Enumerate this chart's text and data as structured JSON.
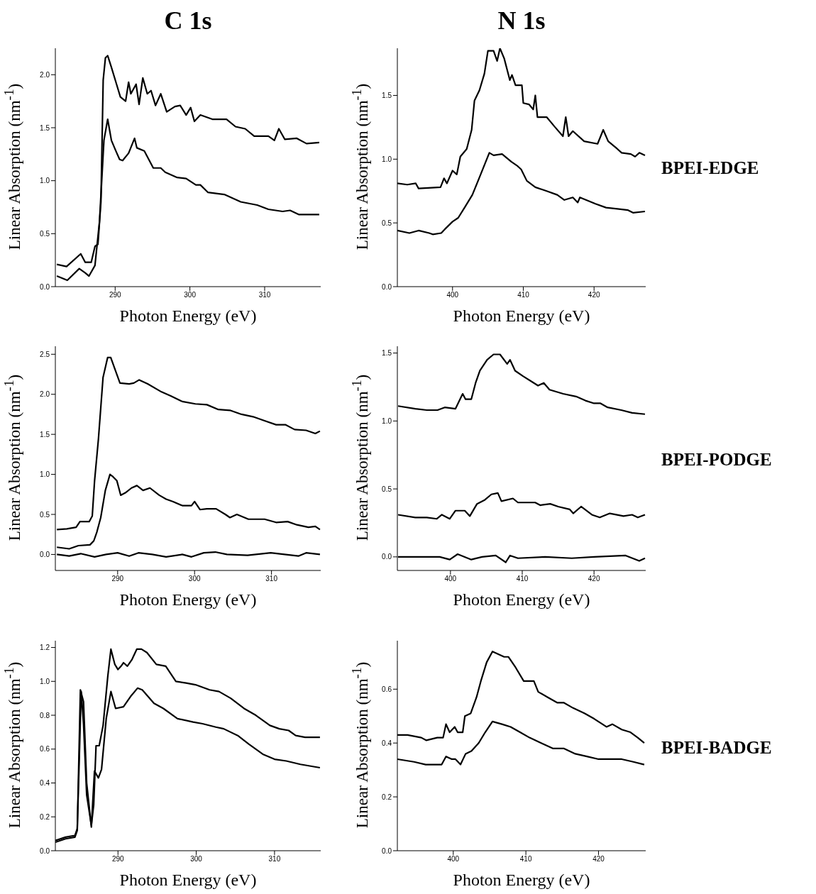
{
  "chart_data": [
    {
      "type": "line",
      "title": "C 1s",
      "xlabel": "Photon Energy (eV)",
      "ylabel": "Linear Absorption (nm$^{-1}$)",
      "xlim": [
        282,
        317.5
      ],
      "xticks": [
        290,
        300,
        310
      ],
      "ylim": [
        0,
        2.25
      ],
      "yticks": [
        {
          "value": 0,
          "label": "0.0"
        },
        {
          "value": 0.5,
          "label": "0.5"
        },
        {
          "value": 1,
          "label": "1.0"
        },
        {
          "value": 1.5,
          "label": "1.5"
        },
        {
          "value": 2,
          "label": "2.0"
        }
      ],
      "series": [
        {
          "color": "#000000",
          "x": [
            282.2,
            283.5,
            285.4,
            286.0,
            286.8,
            287.3,
            287.7,
            288.1,
            288.4,
            288.7,
            289.0,
            289.5,
            290.1,
            290.7,
            291.4,
            291.8,
            292.1,
            292.8,
            293.2,
            293.7,
            294.3,
            294.8,
            295.4,
            296.1,
            296.9,
            298.0,
            298.7,
            299.5,
            300.1,
            300.6,
            301.4,
            303.0,
            304.9,
            306.1,
            307.4,
            308.6,
            310.5,
            311.3,
            311.9,
            312.7,
            314.3,
            315.6,
            317.3
          ],
          "values": [
            0.21,
            0.19,
            0.31,
            0.23,
            0.23,
            0.38,
            0.4,
            0.8,
            1.95,
            2.16,
            2.18,
            2.07,
            1.93,
            1.79,
            1.75,
            1.93,
            1.82,
            1.91,
            1.72,
            1.97,
            1.82,
            1.85,
            1.71,
            1.82,
            1.65,
            1.7,
            1.71,
            1.62,
            1.69,
            1.56,
            1.62,
            1.58,
            1.58,
            1.51,
            1.49,
            1.42,
            1.42,
            1.38,
            1.49,
            1.39,
            1.4,
            1.35,
            1.36
          ]
        },
        {
          "color": "#000000",
          "x": [
            282.2,
            283.6,
            285.2,
            286.0,
            286.5,
            287.3,
            287.9,
            288.5,
            289.0,
            289.5,
            290.1,
            290.6,
            291.0,
            291.8,
            292.6,
            292.9,
            293.9,
            295.1,
            296.1,
            296.7,
            298.3,
            299.5,
            300.8,
            301.4,
            302.4,
            304.6,
            306.8,
            309.0,
            310.5,
            312.4,
            313.4,
            314.6,
            317.3
          ],
          "values": [
            0.1,
            0.06,
            0.17,
            0.13,
            0.1,
            0.2,
            0.61,
            1.38,
            1.58,
            1.38,
            1.28,
            1.2,
            1.19,
            1.26,
            1.4,
            1.31,
            1.28,
            1.12,
            1.12,
            1.08,
            1.03,
            1.02,
            0.96,
            0.96,
            0.89,
            0.87,
            0.8,
            0.77,
            0.73,
            0.71,
            0.72,
            0.68,
            0.68
          ]
        }
      ]
    },
    {
      "type": "line",
      "title": "N 1s",
      "xlabel": "Photon Energy (eV)",
      "ylabel": "Linear Absorption (nm$^{-1}$)",
      "annotations": [
        "BPEI-EDGE"
      ],
      "xlim": [
        392.2,
        427.3
      ],
      "xticks": [
        400,
        410,
        420
      ],
      "ylim": [
        0,
        1.87
      ],
      "yticks": [
        {
          "value": 0,
          "label": "0.0"
        },
        {
          "value": 0.5,
          "label": "0.5"
        },
        {
          "value": 1,
          "label": "1.0"
        },
        {
          "value": 1.5,
          "label": "1.5"
        }
      ],
      "series": [
        {
          "color": "#000000",
          "x": [
            392.2,
            393.6,
            394.8,
            395.2,
            398.3,
            398.8,
            399.2,
            400.0,
            400.6,
            401.1,
            402.0,
            402.7,
            403.1,
            403.8,
            404.5,
            405.0,
            405.8,
            406.3,
            406.7,
            407.3,
            408.1,
            408.4,
            408.9,
            409.8,
            410.0,
            410.8,
            411.4,
            411.7,
            412.0,
            413.3,
            414.5,
            415.6,
            416.0,
            416.4,
            417.0,
            418.6,
            420.5,
            421.3,
            422.0,
            423.3,
            423.9,
            425.2,
            425.8,
            426.4,
            427.2
          ],
          "values": [
            0.81,
            0.8,
            0.81,
            0.77,
            0.78,
            0.85,
            0.81,
            0.91,
            0.88,
            1.02,
            1.08,
            1.23,
            1.46,
            1.54,
            1.67,
            1.85,
            1.85,
            1.77,
            1.87,
            1.79,
            1.62,
            1.66,
            1.58,
            1.58,
            1.44,
            1.43,
            1.39,
            1.5,
            1.33,
            1.33,
            1.25,
            1.18,
            1.33,
            1.18,
            1.22,
            1.14,
            1.12,
            1.23,
            1.14,
            1.08,
            1.05,
            1.04,
            1.02,
            1.05,
            1.03
          ]
        },
        {
          "color": "#000000",
          "x": [
            392.2,
            393.9,
            395.2,
            396.7,
            397.2,
            398.4,
            398.9,
            400.0,
            400.8,
            401.7,
            402.8,
            403.9,
            405.2,
            405.8,
            407.0,
            408.3,
            409.1,
            409.7,
            410.5,
            411.7,
            413.3,
            414.8,
            415.8,
            417.0,
            417.7,
            418.0,
            420.2,
            421.7,
            423.3,
            424.8,
            425.5,
            427.2
          ],
          "values": [
            0.44,
            0.42,
            0.44,
            0.42,
            0.41,
            0.42,
            0.45,
            0.51,
            0.54,
            0.62,
            0.72,
            0.87,
            1.05,
            1.03,
            1.04,
            0.98,
            0.95,
            0.92,
            0.83,
            0.78,
            0.75,
            0.72,
            0.68,
            0.7,
            0.66,
            0.7,
            0.65,
            0.62,
            0.61,
            0.6,
            0.58,
            0.59
          ]
        }
      ]
    },
    {
      "type": "line",
      "xlabel": "Photon Energy (eV)",
      "ylabel": "Linear Absorption (nm$^{-1}$)",
      "xlim": [
        281.9,
        316.4
      ],
      "xticks": [
        290,
        300,
        310
      ],
      "ylim": [
        -0.2,
        2.6
      ],
      "yticks": [
        {
          "value": 0,
          "label": "0.0"
        },
        {
          "value": 0.5,
          "label": "0.5"
        },
        {
          "value": 1,
          "label": "1.0"
        },
        {
          "value": 1.5,
          "label": "1.5"
        },
        {
          "value": 2,
          "label": "2.0"
        },
        {
          "value": 2.5,
          "label": "2.5"
        }
      ],
      "series": [
        {
          "color": "#000000",
          "x": [
            282.1,
            283.4,
            284.6,
            285.1,
            286.3,
            286.7,
            287.0,
            287.5,
            288.1,
            288.7,
            289.1,
            289.7,
            290.3,
            291.5,
            292.1,
            292.8,
            293.9,
            295.7,
            296.9,
            298.4,
            300.1,
            301.6,
            303.1,
            304.6,
            306.1,
            307.6,
            309.1,
            310.6,
            311.8,
            313.0,
            314.5,
            315.7,
            316.3
          ],
          "values": [
            0.31,
            0.32,
            0.34,
            0.41,
            0.41,
            0.48,
            0.92,
            1.44,
            2.21,
            2.46,
            2.46,
            2.3,
            2.14,
            2.13,
            2.14,
            2.18,
            2.13,
            2.03,
            1.98,
            1.91,
            1.88,
            1.87,
            1.81,
            1.8,
            1.75,
            1.72,
            1.67,
            1.62,
            1.62,
            1.56,
            1.55,
            1.51,
            1.54
          ]
        },
        {
          "color": "#000000",
          "x": [
            282.1,
            283.7,
            284.9,
            286.4,
            286.9,
            287.3,
            287.8,
            288.4,
            289.0,
            289.4,
            289.9,
            290.4,
            291.0,
            291.8,
            292.5,
            293.3,
            294.2,
            295.4,
            296.3,
            297.2,
            298.4,
            299.6,
            300.0,
            300.7,
            301.6,
            302.8,
            304.0,
            304.6,
            305.5,
            307.0,
            309.1,
            310.6,
            312.1,
            313.3,
            314.8,
            315.7,
            316.3
          ],
          "values": [
            0.09,
            0.07,
            0.11,
            0.12,
            0.17,
            0.28,
            0.46,
            0.8,
            1.0,
            0.97,
            0.92,
            0.74,
            0.77,
            0.83,
            0.86,
            0.8,
            0.83,
            0.74,
            0.69,
            0.66,
            0.61,
            0.61,
            0.66,
            0.56,
            0.57,
            0.57,
            0.5,
            0.46,
            0.5,
            0.44,
            0.44,
            0.4,
            0.41,
            0.37,
            0.34,
            0.35,
            0.31
          ]
        },
        {
          "color": "#000000",
          "x": [
            282.1,
            283.7,
            285.2,
            287.0,
            288.5,
            290.0,
            291.5,
            292.7,
            294.5,
            296.3,
            298.4,
            299.6,
            301.2,
            302.7,
            304.2,
            306.9,
            309.9,
            313.5,
            314.5,
            316.3
          ],
          "values": [
            0.0,
            -0.02,
            0.01,
            -0.03,
            0.0,
            0.02,
            -0.02,
            0.02,
            0.0,
            -0.03,
            0.0,
            -0.03,
            0.02,
            0.03,
            0.0,
            -0.01,
            0.02,
            -0.02,
            0.02,
            0.0
          ]
        }
      ]
    },
    {
      "type": "line",
      "xlabel": "Photon Energy (eV)",
      "ylabel": "Linear Absorption (nm$^{-1}$)",
      "annotations": [
        "BPEI-PODGE"
      ],
      "xlim": [
        392.6,
        427.2
      ],
      "xticks": [
        400,
        410,
        420
      ],
      "ylim": [
        -0.1,
        1.55
      ],
      "yticks": [
        {
          "value": 0,
          "label": "0.0"
        },
        {
          "value": 0.5,
          "label": "0.5"
        },
        {
          "value": 1,
          "label": "1.0"
        },
        {
          "value": 1.5,
          "label": "1.5"
        }
      ],
      "series": [
        {
          "color": "#000000",
          "x": [
            392.7,
            395.1,
            396.7,
            398.2,
            399.2,
            400.7,
            401.7,
            402.1,
            402.9,
            403.5,
            404.1,
            405.1,
            406.0,
            406.9,
            407.9,
            408.3,
            409.0,
            410.1,
            411.3,
            412.2,
            413.0,
            413.8,
            415.7,
            417.5,
            418.8,
            420.0,
            420.9,
            421.9,
            423.8,
            425.3,
            427.1
          ],
          "values": [
            1.11,
            1.09,
            1.08,
            1.08,
            1.1,
            1.09,
            1.2,
            1.16,
            1.16,
            1.28,
            1.37,
            1.45,
            1.49,
            1.49,
            1.42,
            1.45,
            1.37,
            1.33,
            1.29,
            1.26,
            1.28,
            1.23,
            1.2,
            1.18,
            1.15,
            1.13,
            1.13,
            1.1,
            1.08,
            1.06,
            1.05
          ]
        },
        {
          "color": "#000000",
          "x": [
            392.7,
            395.1,
            396.7,
            398.1,
            398.8,
            399.9,
            400.7,
            402.0,
            402.7,
            403.7,
            404.8,
            405.7,
            406.6,
            407.1,
            408.7,
            409.4,
            410.7,
            411.8,
            412.5,
            413.9,
            415.0,
            416.6,
            417.1,
            418.2,
            419.7,
            420.8,
            422.2,
            424.1,
            425.3,
            426.1,
            427.1
          ],
          "values": [
            0.31,
            0.29,
            0.29,
            0.28,
            0.31,
            0.28,
            0.34,
            0.34,
            0.3,
            0.39,
            0.42,
            0.46,
            0.47,
            0.41,
            0.43,
            0.4,
            0.4,
            0.4,
            0.38,
            0.39,
            0.37,
            0.35,
            0.32,
            0.37,
            0.31,
            0.29,
            0.32,
            0.3,
            0.31,
            0.29,
            0.31
          ]
        },
        {
          "color": "#000000",
          "x": [
            392.7,
            395.1,
            398.5,
            399.9,
            401.0,
            402.9,
            404.4,
            406.3,
            407.7,
            408.3,
            409.4,
            413.2,
            416.9,
            420.0,
            424.4,
            426.3,
            427.1
          ],
          "values": [
            0.0,
            0.0,
            0.0,
            -0.02,
            0.02,
            -0.02,
            0.0,
            0.01,
            -0.04,
            0.01,
            -0.01,
            0.0,
            -0.01,
            0.0,
            0.01,
            -0.03,
            -0.01
          ]
        }
      ]
    },
    {
      "type": "line",
      "xlabel": "Photon Energy (eV)",
      "ylabel": "Linear Absorption (nm$^{-1}$)",
      "xlim": [
        282,
        315.9
      ],
      "xticks": [
        290,
        300,
        310
      ],
      "ylim": [
        0,
        1.24
      ],
      "yticks": [
        {
          "value": 0,
          "label": "0.0"
        },
        {
          "value": 0.2,
          "label": "0.2"
        },
        {
          "value": 0.4,
          "label": "0.4"
        },
        {
          "value": 0.6,
          "label": "0.6"
        },
        {
          "value": 0.8,
          "label": "0.8"
        },
        {
          "value": 1,
          "label": "1.0"
        },
        {
          "value": 1.2,
          "label": "1.2"
        }
      ],
      "series": [
        {
          "color": "#000000",
          "x": [
            282.0,
            283.3,
            284.5,
            284.8,
            285.3,
            285.6,
            286.0,
            286.6,
            286.9,
            287.2,
            287.6,
            288.1,
            288.7,
            289.1,
            289.6,
            290.0,
            290.4,
            290.7,
            291.2,
            291.8,
            292.4,
            293.0,
            293.7,
            294.9,
            296.1,
            297.4,
            298.7,
            299.9,
            301.7,
            302.9,
            304.4,
            306.1,
            307.6,
            309.4,
            310.6,
            311.8,
            312.7,
            313.9,
            315.8
          ],
          "values": [
            0.06,
            0.08,
            0.09,
            0.13,
            0.94,
            0.75,
            0.33,
            0.15,
            0.27,
            0.62,
            0.62,
            0.74,
            1.03,
            1.19,
            1.1,
            1.07,
            1.09,
            1.11,
            1.09,
            1.13,
            1.19,
            1.19,
            1.17,
            1.1,
            1.09,
            1.0,
            0.99,
            0.98,
            0.95,
            0.94,
            0.9,
            0.84,
            0.8,
            0.74,
            0.72,
            0.71,
            0.68,
            0.67,
            0.67
          ]
        },
        {
          "color": "#000000",
          "x": [
            282.0,
            283.3,
            284.5,
            284.8,
            285.2,
            285.6,
            286.0,
            286.6,
            287.0,
            287.5,
            287.9,
            288.5,
            289.1,
            289.7,
            290.7,
            291.6,
            292.5,
            293.1,
            294.6,
            295.8,
            297.6,
            299.6,
            300.8,
            302.5,
            303.5,
            305.3,
            306.7,
            308.5,
            310.0,
            311.5,
            313.3,
            315.8
          ],
          "values": [
            0.05,
            0.07,
            0.08,
            0.12,
            0.95,
            0.88,
            0.4,
            0.14,
            0.47,
            0.43,
            0.48,
            0.78,
            0.94,
            0.84,
            0.85,
            0.91,
            0.96,
            0.95,
            0.87,
            0.84,
            0.78,
            0.76,
            0.75,
            0.73,
            0.72,
            0.68,
            0.63,
            0.57,
            0.54,
            0.53,
            0.51,
            0.49
          ]
        }
      ]
    },
    {
      "type": "line",
      "xlabel": "Photon Energy (eV)",
      "ylabel": "Linear Absorption (nm$^{-1}$)",
      "annotations": [
        "BPEI-BADGE"
      ],
      "xlim": [
        392.3,
        426.5
      ],
      "xticks": [
        400,
        410,
        420
      ],
      "ylim": [
        0,
        0.78
      ],
      "yticks": [
        {
          "value": 0,
          "label": "0.0"
        },
        {
          "value": 0.2,
          "label": "0.2"
        },
        {
          "value": 0.4,
          "label": "0.4"
        },
        {
          "value": 0.6,
          "label": "0.6"
        }
      ],
      "series": [
        {
          "color": "#000000",
          "x": [
            392.3,
            393.7,
            395.6,
            396.3,
            397.8,
            398.6,
            399.0,
            399.5,
            400.2,
            400.6,
            401.3,
            401.6,
            402.4,
            403.2,
            403.8,
            404.6,
            405.4,
            406.2,
            407.0,
            407.6,
            408.6,
            409.7,
            410.5,
            411.1,
            411.7,
            413.0,
            414.3,
            415.2,
            416.5,
            418.1,
            419.4,
            421.1,
            421.9,
            423.2,
            424.4,
            425.4,
            426.3
          ],
          "values": [
            0.43,
            0.43,
            0.42,
            0.41,
            0.42,
            0.42,
            0.47,
            0.44,
            0.46,
            0.44,
            0.44,
            0.5,
            0.51,
            0.57,
            0.63,
            0.7,
            0.74,
            0.73,
            0.72,
            0.72,
            0.68,
            0.63,
            0.63,
            0.63,
            0.59,
            0.57,
            0.55,
            0.55,
            0.53,
            0.51,
            0.49,
            0.46,
            0.47,
            0.45,
            0.44,
            0.42,
            0.4
          ]
        },
        {
          "color": "#000000",
          "x": [
            392.3,
            394.6,
            396.2,
            398.4,
            399.0,
            399.8,
            400.3,
            401.0,
            401.7,
            402.5,
            403.5,
            404.4,
            405.4,
            406.7,
            407.9,
            409.2,
            410.5,
            412.1,
            413.7,
            415.2,
            416.8,
            418.4,
            420.0,
            421.6,
            423.2,
            424.8,
            426.3
          ],
          "values": [
            0.34,
            0.33,
            0.32,
            0.32,
            0.35,
            0.34,
            0.34,
            0.32,
            0.36,
            0.37,
            0.4,
            0.44,
            0.48,
            0.47,
            0.46,
            0.44,
            0.42,
            0.4,
            0.38,
            0.38,
            0.36,
            0.35,
            0.34,
            0.34,
            0.34,
            0.33,
            0.32
          ]
        }
      ]
    }
  ]
}
